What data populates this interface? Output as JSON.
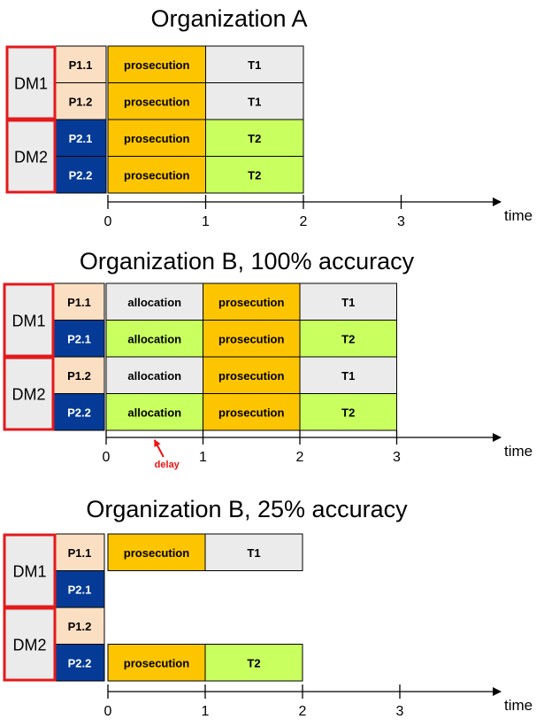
{
  "colors": {
    "dm_fill": "#ebebeb",
    "dm_border": "#e4191c",
    "p_light": "#fbdfc3",
    "p_dark": "#053b96",
    "prosecution": "#fdc500",
    "t1": "#ebebeb",
    "t2": "#c9ff5f",
    "allocation_t1": "#ebebeb",
    "allocation_t2": "#c9ff5f",
    "delay_color": "#ee1111"
  },
  "axis_label": "time",
  "ticks": [
    "0",
    "1",
    "2",
    "3"
  ],
  "panels": [
    {
      "title": "Organization A",
      "dms": [
        {
          "label": "DM1",
          "rows": [
            0,
            1
          ]
        },
        {
          "label": "DM2",
          "rows": [
            2,
            3
          ]
        }
      ],
      "rows": [
        {
          "p": "P1.1",
          "p_style": "light",
          "blocks": [
            {
              "label": "prosecution",
              "start": 0,
              "end": 1,
              "kind": "prosecution"
            },
            {
              "label": "T1",
              "start": 1,
              "end": 2,
              "kind": "t1"
            }
          ]
        },
        {
          "p": "P1.2",
          "p_style": "light",
          "blocks": [
            {
              "label": "prosecution",
              "start": 0,
              "end": 1,
              "kind": "prosecution"
            },
            {
              "label": "T1",
              "start": 1,
              "end": 2,
              "kind": "t1"
            }
          ]
        },
        {
          "p": "P2.1",
          "p_style": "dark",
          "blocks": [
            {
              "label": "prosecution",
              "start": 0,
              "end": 1,
              "kind": "prosecution"
            },
            {
              "label": "T2",
              "start": 1,
              "end": 2,
              "kind": "t2"
            }
          ]
        },
        {
          "p": "P2.2",
          "p_style": "dark",
          "blocks": [
            {
              "label": "prosecution",
              "start": 0,
              "end": 1,
              "kind": "prosecution"
            },
            {
              "label": "T2",
              "start": 1,
              "end": 2,
              "kind": "t2"
            }
          ]
        }
      ]
    },
    {
      "title": "Organization B, 100% accuracy",
      "dms": [
        {
          "label": "DM1",
          "rows": [
            0,
            1
          ]
        },
        {
          "label": "DM2",
          "rows": [
            2,
            3
          ]
        }
      ],
      "rows": [
        {
          "p": "P1.1",
          "p_style": "light",
          "blocks": [
            {
              "label": "allocation",
              "start": 0,
              "end": 1,
              "kind": "t1"
            },
            {
              "label": "prosecution",
              "start": 1,
              "end": 2,
              "kind": "prosecution"
            },
            {
              "label": "T1",
              "start": 2,
              "end": 3,
              "kind": "t1"
            }
          ]
        },
        {
          "p": "P2.1",
          "p_style": "dark",
          "blocks": [
            {
              "label": "allocation",
              "start": 0,
              "end": 1,
              "kind": "t2"
            },
            {
              "label": "prosecution",
              "start": 1,
              "end": 2,
              "kind": "prosecution"
            },
            {
              "label": "T2",
              "start": 2,
              "end": 3,
              "kind": "t2"
            }
          ]
        },
        {
          "p": "P1.2",
          "p_style": "light",
          "blocks": [
            {
              "label": "allocation",
              "start": 0,
              "end": 1,
              "kind": "t1"
            },
            {
              "label": "prosecution",
              "start": 1,
              "end": 2,
              "kind": "prosecution"
            },
            {
              "label": "T1",
              "start": 2,
              "end": 3,
              "kind": "t1"
            }
          ]
        },
        {
          "p": "P2.2",
          "p_style": "dark",
          "blocks": [
            {
              "label": "allocation",
              "start": 0,
              "end": 1,
              "kind": "t2"
            },
            {
              "label": "prosecution",
              "start": 1,
              "end": 2,
              "kind": "prosecution"
            },
            {
              "label": "T2",
              "start": 2,
              "end": 3,
              "kind": "t2"
            }
          ]
        }
      ],
      "delay": {
        "label": "delay",
        "time": 0.5
      }
    },
    {
      "title": "Organization B, 25% accuracy",
      "dms": [
        {
          "label": "DM1",
          "rows": [
            0,
            1
          ]
        },
        {
          "label": "DM2",
          "rows": [
            2,
            3
          ]
        }
      ],
      "rows": [
        {
          "p": "P1.1",
          "p_style": "light",
          "blocks": [
            {
              "label": "prosecution",
              "start": 0,
              "end": 1,
              "kind": "prosecution"
            },
            {
              "label": "T1",
              "start": 1,
              "end": 2,
              "kind": "t1"
            }
          ]
        },
        {
          "p": "P2.1",
          "p_style": "dark",
          "blocks": []
        },
        {
          "p": "P1.2",
          "p_style": "light",
          "blocks": []
        },
        {
          "p": "P2.2",
          "p_style": "dark",
          "blocks": [
            {
              "label": "prosecution",
              "start": 0,
              "end": 1,
              "kind": "prosecution"
            },
            {
              "label": "T2",
              "start": 1,
              "end": 2,
              "kind": "t2"
            }
          ]
        }
      ]
    }
  ]
}
